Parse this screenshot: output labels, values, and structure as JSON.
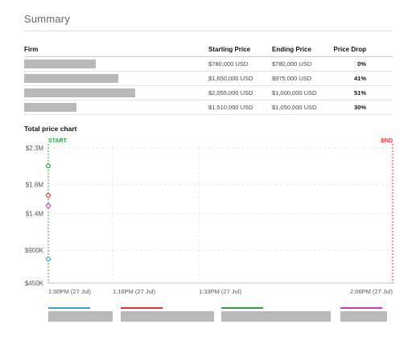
{
  "summary": {
    "title": "Summary",
    "headers": {
      "firm": "Firm",
      "starting_price": "Starting Price",
      "ending_price": "Ending Price",
      "price_drop": "Price Drop"
    },
    "rows": [
      {
        "starting_price": "$780,000 USD",
        "ending_price": "$780,000 USD",
        "price_drop": "0%"
      },
      {
        "starting_price": "$1,650,000 USD",
        "ending_price": "$975,000 USD",
        "price_drop": "41%"
      },
      {
        "starting_price": "$2,055,000 USD",
        "ending_price": "$1,000,000 USD",
        "price_drop": "51%"
      },
      {
        "starting_price": "$1,510,000 USD",
        "ending_price": "$1,050,000 USD",
        "price_drop": "30%"
      }
    ]
  },
  "chart": {
    "title": "Total price chart"
  },
  "chart_data": {
    "type": "scatter",
    "title": "Total price chart",
    "start_label": "START",
    "end_label": "END",
    "y_tick_labels": [
      "$2.3M",
      "$1.8M",
      "$1.4M",
      "$900K",
      "$450K"
    ],
    "y_ticks": [
      2300000,
      1800000,
      1400000,
      900000,
      450000
    ],
    "ylim": [
      450000,
      2300000
    ],
    "x_tick_labels": [
      "1:00PM (27 Jul)",
      "1:16PM (27 Jul)",
      "1:33PM (27 Jul)",
      "2:06PM (27 Jul)"
    ],
    "x_ticks": [
      "1:00PM",
      "1:16PM",
      "1:33PM",
      "2:06PM"
    ],
    "grid": true,
    "series": [
      {
        "color": "#3a9fd6",
        "points": [
          {
            "x": "1:00PM",
            "y": 780000
          }
        ]
      },
      {
        "color": "#e0322f",
        "points": [
          {
            "x": "1:00PM",
            "y": 1650000
          }
        ]
      },
      {
        "color": "#2ea043",
        "points": [
          {
            "x": "1:00PM",
            "y": 2055000
          }
        ]
      },
      {
        "color": "#d63ab8",
        "points": [
          {
            "x": "1:00PM",
            "y": 1510000
          }
        ]
      }
    ],
    "start_color": "#2ea043",
    "end_color": "#e0322f"
  }
}
